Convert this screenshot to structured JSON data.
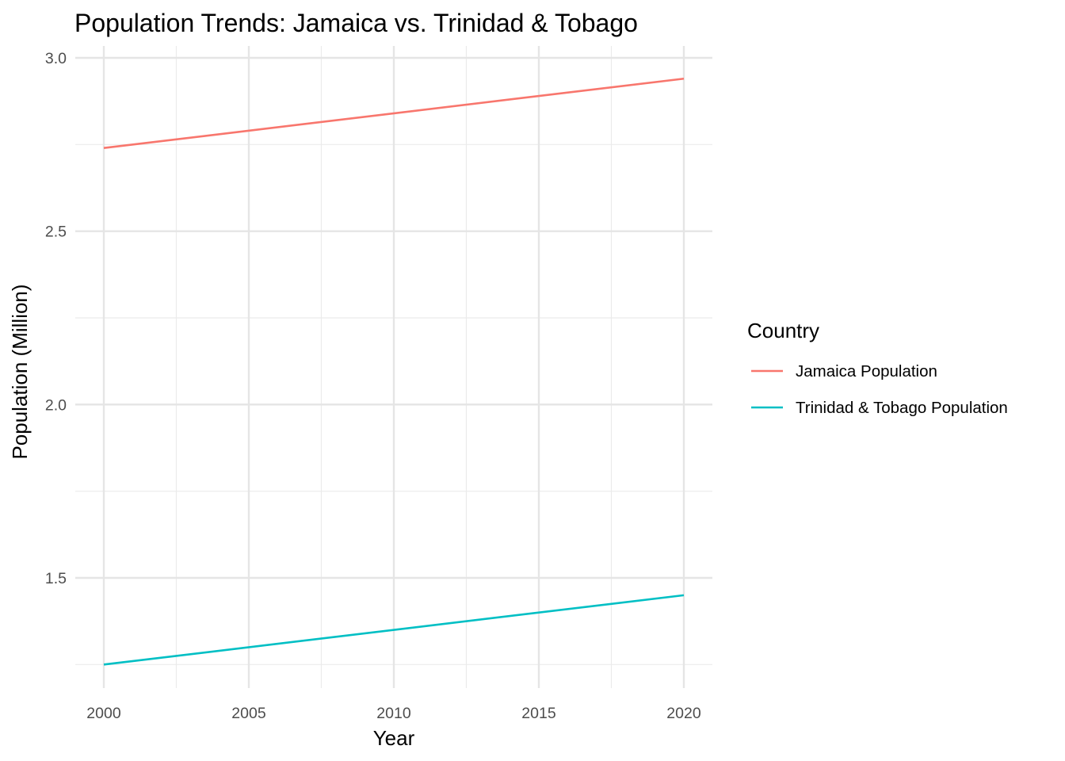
{
  "chart_data": {
    "type": "line",
    "title": "Population Trends: Jamaica vs. Trinidad & Tobago",
    "xlabel": "Year",
    "ylabel": "Population (Million)",
    "xlim": [
      1999,
      2021
    ],
    "ylim": [
      1.2,
      3.0
    ],
    "x_ticks": [
      2000,
      2005,
      2010,
      2015,
      2020
    ],
    "y_ticks": [
      1.5,
      2.0,
      2.5,
      3.0
    ],
    "grid": true,
    "legend": {
      "title": "Country",
      "placement": "right"
    },
    "series": [
      {
        "name": "Jamaica Population",
        "color": "#F8766D",
        "x": [
          2000,
          2020
        ],
        "values": [
          2.74,
          2.94
        ]
      },
      {
        "name": "Trinidad & Tobago Population",
        "color": "#00BFC4",
        "x": [
          2000,
          2020
        ],
        "values": [
          1.25,
          1.45
        ]
      }
    ]
  }
}
